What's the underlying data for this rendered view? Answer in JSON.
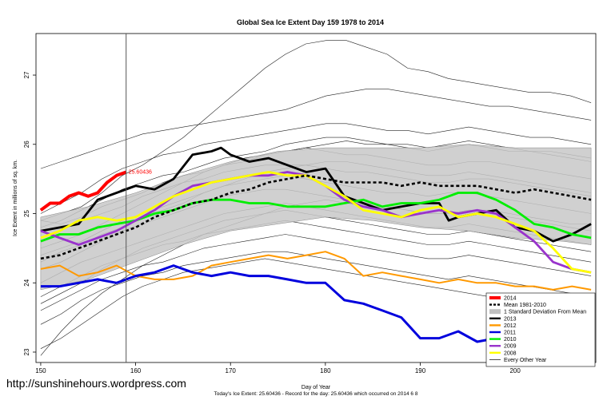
{
  "watermark": "http://sunshinehours.wordpress.com",
  "caption": "Today's Ice Extent: 25.60436  -  Record for the day: 25.60436 which occurred on 2014 6 8",
  "chart_data": {
    "type": "line",
    "title": "Global Sea Ice Extent Day 159 1978 to 2014",
    "xlabel": "Day of Year",
    "ylabel": "Ice Extent in millions of sq. km.",
    "xlim": [
      149.5,
      208.5
    ],
    "ylim": [
      22.85,
      27.6
    ],
    "xticks": [
      150,
      160,
      170,
      180,
      190,
      200
    ],
    "yticks": [
      23,
      24,
      25,
      26,
      27
    ],
    "marker_day": 159,
    "annotation": {
      "text": "25.60436",
      "x": 159,
      "y": 25.6
    },
    "legend": {
      "position": "bottom-right",
      "entries": [
        {
          "label": "2014",
          "color": "#ff0000",
          "style": "thick"
        },
        {
          "label": "Mean 1981-2010",
          "color": "#000000",
          "style": "dashed"
        },
        {
          "label": "1 Standard Deviation From Mean",
          "color": "#bfbfbf",
          "style": "fill"
        },
        {
          "label": "2013",
          "color": "#000000",
          "style": "solid"
        },
        {
          "label": "2012",
          "color": "#ff9900",
          "style": "solid"
        },
        {
          "label": "2011",
          "color": "#0000dd",
          "style": "solid"
        },
        {
          "label": "2010",
          "color": "#00ee00",
          "style": "solid"
        },
        {
          "label": "2009",
          "color": "#9933cc",
          "style": "solid"
        },
        {
          "label": "2008",
          "color": "#ffff00",
          "style": "solid"
        },
        {
          "label": "Every Other Year",
          "color": "#000000",
          "style": "thin"
        }
      ]
    },
    "band": {
      "x": [
        150,
        155,
        160,
        165,
        170,
        175,
        180,
        185,
        190,
        195,
        200,
        205,
        208
      ],
      "upper": [
        24.95,
        25.1,
        25.3,
        25.55,
        25.75,
        25.9,
        25.95,
        25.95,
        25.95,
        26.0,
        25.95,
        25.95,
        25.95
      ],
      "lower": [
        23.9,
        24.05,
        24.3,
        24.55,
        24.75,
        24.85,
        24.95,
        24.9,
        24.8,
        24.75,
        24.65,
        24.6,
        24.55
      ]
    },
    "mean": {
      "x": [
        150,
        152,
        154,
        156,
        158,
        160,
        162,
        164,
        166,
        168,
        170,
        172,
        174,
        176,
        178,
        180,
        182,
        184,
        186,
        188,
        190,
        192,
        194,
        196,
        198,
        200,
        202,
        204,
        206,
        208
      ],
      "y": [
        24.35,
        24.4,
        24.5,
        24.6,
        24.7,
        24.8,
        24.95,
        25.05,
        25.15,
        25.2,
        25.3,
        25.35,
        25.45,
        25.5,
        25.55,
        25.5,
        25.45,
        25.45,
        25.45,
        25.4,
        25.45,
        25.4,
        25.4,
        25.4,
        25.35,
        25.3,
        25.35,
        25.3,
        25.25,
        25.2
      ]
    },
    "series": [
      {
        "name": "2014",
        "color": "#ff0000",
        "width": 4,
        "x": [
          150,
          151,
          152,
          153,
          154,
          155,
          156,
          157,
          158,
          159
        ],
        "y": [
          25.05,
          25.15,
          25.15,
          25.25,
          25.3,
          25.25,
          25.3,
          25.45,
          25.55,
          25.6
        ]
      },
      {
        "name": "2013",
        "color": "#000000",
        "width": 2.8,
        "x": [
          150,
          152,
          154,
          156,
          158,
          160,
          162,
          164,
          166,
          168,
          169,
          170,
          172,
          174,
          176,
          178,
          180,
          182,
          184,
          186,
          188,
          190,
          192,
          193,
          194,
          196,
          198,
          200,
          202,
          204,
          206,
          208
        ],
        "y": [
          24.75,
          24.8,
          24.85,
          25.2,
          25.3,
          25.4,
          25.35,
          25.5,
          25.85,
          25.9,
          25.95,
          25.85,
          25.75,
          25.8,
          25.7,
          25.6,
          25.65,
          25.25,
          25.15,
          25.05,
          25.1,
          25.15,
          25.15,
          24.9,
          24.95,
          25.0,
          25.05,
          24.8,
          24.75,
          24.6,
          24.7,
          24.85
        ]
      },
      {
        "name": "2012",
        "color": "#ff9900",
        "width": 2,
        "x": [
          150,
          152,
          154,
          156,
          158,
          160,
          162,
          164,
          166,
          168,
          170,
          172,
          174,
          176,
          178,
          180,
          182,
          184,
          186,
          188,
          190,
          192,
          194,
          196,
          198,
          200,
          202,
          204,
          206,
          208
        ],
        "y": [
          24.2,
          24.25,
          24.1,
          24.15,
          24.25,
          24.1,
          24.05,
          24.05,
          24.1,
          24.25,
          24.3,
          24.35,
          24.4,
          24.35,
          24.4,
          24.45,
          24.35,
          24.1,
          24.15,
          24.1,
          24.05,
          24.0,
          24.05,
          24.0,
          24.0,
          23.95,
          23.95,
          23.9,
          23.95,
          23.9
        ]
      },
      {
        "name": "2011",
        "color": "#0000dd",
        "width": 3,
        "x": [
          150,
          152,
          154,
          156,
          158,
          160,
          162,
          164,
          166,
          168,
          170,
          172,
          174,
          176,
          178,
          180,
          182,
          184,
          186,
          188,
          190,
          192,
          194,
          196,
          198,
          200,
          202,
          204,
          206,
          208
        ],
        "y": [
          23.95,
          23.95,
          24.0,
          24.05,
          24.0,
          24.1,
          24.15,
          24.25,
          24.15,
          24.1,
          24.15,
          24.1,
          24.1,
          24.05,
          24.0,
          24.0,
          23.75,
          23.7,
          23.6,
          23.5,
          23.2,
          23.2,
          23.3,
          23.15,
          23.2,
          23.3,
          23.4,
          23.5,
          23.6,
          23.7
        ]
      },
      {
        "name": "2010",
        "color": "#00ee00",
        "width": 2.8,
        "x": [
          150,
          152,
          154,
          156,
          158,
          160,
          162,
          164,
          166,
          168,
          170,
          172,
          174,
          176,
          178,
          180,
          182,
          184,
          186,
          188,
          190,
          192,
          194,
          196,
          198,
          200,
          202,
          204,
          206,
          208
        ],
        "y": [
          24.6,
          24.7,
          24.7,
          24.8,
          24.85,
          24.9,
          25.0,
          25.05,
          25.15,
          25.2,
          25.2,
          25.15,
          25.15,
          25.1,
          25.1,
          25.1,
          25.15,
          25.2,
          25.1,
          25.15,
          25.15,
          25.2,
          25.3,
          25.3,
          25.2,
          25.05,
          24.85,
          24.8,
          24.7,
          24.65
        ]
      },
      {
        "name": "2009",
        "color": "#9933cc",
        "width": 2.8,
        "x": [
          150,
          152,
          154,
          156,
          158,
          160,
          162,
          164,
          166,
          168,
          170,
          172,
          174,
          176,
          178,
          180,
          182,
          184,
          186,
          188,
          190,
          192,
          194,
          196,
          198,
          200,
          202,
          204,
          206,
          208
        ],
        "y": [
          24.75,
          24.65,
          24.55,
          24.65,
          24.75,
          24.9,
          25.05,
          25.25,
          25.4,
          25.45,
          25.5,
          25.55,
          25.55,
          25.6,
          25.55,
          25.4,
          25.2,
          25.1,
          25.05,
          24.95,
          25.0,
          25.05,
          25.0,
          25.05,
          25.0,
          24.8,
          24.6,
          24.3,
          24.2,
          24.15
        ]
      },
      {
        "name": "2008",
        "color": "#ffff00",
        "width": 2.8,
        "x": [
          150,
          152,
          154,
          156,
          158,
          160,
          162,
          164,
          166,
          168,
          170,
          172,
          174,
          176,
          178,
          180,
          182,
          184,
          186,
          188,
          190,
          192,
          194,
          196,
          198,
          200,
          202,
          204,
          206,
          208
        ],
        "y": [
          24.65,
          24.75,
          24.9,
          24.95,
          24.9,
          24.95,
          25.1,
          25.25,
          25.35,
          25.45,
          25.5,
          25.55,
          25.6,
          25.55,
          25.55,
          25.4,
          25.25,
          25.05,
          25.0,
          24.95,
          25.05,
          25.1,
          24.95,
          25.0,
          24.95,
          24.85,
          24.75,
          24.5,
          24.2,
          24.15
        ]
      }
    ],
    "other_years": [
      [
        24.9,
        25.0,
        25.1,
        25.3,
        25.55,
        25.7,
        25.9,
        26.1,
        26.35,
        26.6,
        26.85,
        27.1,
        27.3,
        27.45,
        27.5,
        27.5,
        27.4,
        27.3,
        27.1,
        27.05,
        26.95,
        26.9,
        26.85,
        26.8,
        26.75,
        26.75,
        26.7,
        26.6
      ],
      [
        25.65,
        25.75,
        25.85,
        25.95,
        26.05,
        26.15,
        26.2,
        26.25,
        26.3,
        26.35,
        26.4,
        26.45,
        26.5,
        26.6,
        26.7,
        26.75,
        26.8,
        26.8,
        26.75,
        26.7,
        26.65,
        26.6,
        26.55,
        26.55,
        26.5,
        26.45,
        26.4,
        26.35
      ],
      [
        25.0,
        25.15,
        25.3,
        25.5,
        25.65,
        25.75,
        25.85,
        25.9,
        26.0,
        26.05,
        26.1,
        26.15,
        26.2,
        26.25,
        26.3,
        26.3,
        26.25,
        26.2,
        26.2,
        26.15,
        26.2,
        26.25,
        26.2,
        26.15,
        26.1,
        26.1,
        26.05,
        26.0
      ],
      [
        24.8,
        24.9,
        25.05,
        25.2,
        25.35,
        25.45,
        25.55,
        25.6,
        25.7,
        25.8,
        25.85,
        25.9,
        26.0,
        26.05,
        26.1,
        26.1,
        26.05,
        26.0,
        26.0,
        25.95,
        26.0,
        26.05,
        26.0,
        25.95,
        25.9,
        25.9,
        25.85,
        25.8
      ],
      [
        24.9,
        24.85,
        24.95,
        25.1,
        25.2,
        25.3,
        25.45,
        25.55,
        25.6,
        25.7,
        25.75,
        25.85,
        25.9,
        25.95,
        25.9,
        25.85,
        25.85,
        25.8,
        25.75,
        25.7,
        25.7,
        25.75,
        25.75,
        25.7,
        25.65,
        25.6,
        25.55,
        25.5
      ],
      [
        24.6,
        24.75,
        24.9,
        25.0,
        25.1,
        25.25,
        25.35,
        25.45,
        25.5,
        25.6,
        25.65,
        25.7,
        25.7,
        25.7,
        25.65,
        25.6,
        25.6,
        25.55,
        25.5,
        25.45,
        25.45,
        25.5,
        25.5,
        25.45,
        25.4,
        25.35,
        25.3,
        25.25
      ],
      [
        24.4,
        24.5,
        24.6,
        24.75,
        24.9,
        25.0,
        25.1,
        25.2,
        25.3,
        25.4,
        25.45,
        25.5,
        25.55,
        25.5,
        25.45,
        25.4,
        25.35,
        25.3,
        25.3,
        25.25,
        25.3,
        25.3,
        25.25,
        25.2,
        25.15,
        25.1,
        25.05,
        25.0
      ],
      [
        24.2,
        24.3,
        24.45,
        24.6,
        24.75,
        24.85,
        24.95,
        25.05,
        25.15,
        25.25,
        25.3,
        25.35,
        25.35,
        25.3,
        25.25,
        25.2,
        25.15,
        25.1,
        25.05,
        25.0,
        25.0,
        25.05,
        25.0,
        24.95,
        24.9,
        24.85,
        24.8,
        24.75
      ],
      [
        24.0,
        24.15,
        24.3,
        24.4,
        24.5,
        24.6,
        24.7,
        24.8,
        24.9,
        25.0,
        25.05,
        25.1,
        25.15,
        25.1,
        25.05,
        25.0,
        24.95,
        24.9,
        24.85,
        24.8,
        24.8,
        24.85,
        24.8,
        24.75,
        24.7,
        24.65,
        24.6,
        24.55
      ],
      [
        23.8,
        23.95,
        24.1,
        24.25,
        24.35,
        24.45,
        24.55,
        24.6,
        24.7,
        24.75,
        24.8,
        24.85,
        24.9,
        24.85,
        24.8,
        24.75,
        24.7,
        24.65,
        24.6,
        24.55,
        24.55,
        24.6,
        24.55,
        24.5,
        24.45,
        24.4,
        24.35,
        24.3
      ],
      [
        23.6,
        23.75,
        23.9,
        24.05,
        24.15,
        24.25,
        24.3,
        24.4,
        24.5,
        24.55,
        24.6,
        24.65,
        24.7,
        24.65,
        24.6,
        24.55,
        24.5,
        24.45,
        24.4,
        24.35,
        24.35,
        24.4,
        24.35,
        24.3,
        24.25,
        24.2,
        24.15,
        24.1
      ],
      [
        23.4,
        23.55,
        23.75,
        23.9,
        24.0,
        24.1,
        24.15,
        24.25,
        24.3,
        24.35,
        24.4,
        24.45,
        24.45,
        24.4,
        24.35,
        24.3,
        24.25,
        24.2,
        24.15,
        24.1,
        24.05,
        24.1,
        24.05,
        24.0,
        23.95,
        23.9,
        23.85,
        23.8
      ],
      [
        22.95,
        23.3,
        23.6,
        23.85,
        24.05,
        24.25,
        24.4,
        24.55,
        24.7,
        24.8,
        24.9,
        25.0,
        25.1,
        25.15,
        25.2,
        25.15,
        25.1,
        25.1,
        25.05,
        25.0,
        25.0,
        25.05,
        25.05,
        25.0,
        24.95,
        24.9,
        24.85,
        24.85
      ],
      [
        23.05,
        23.2,
        23.4,
        23.6,
        23.8,
        23.95,
        24.05,
        24.15,
        24.2,
        24.25,
        24.3,
        24.35,
        24.3,
        24.25,
        24.2,
        24.15,
        24.1,
        24.05,
        24.0,
        23.95,
        23.9,
        23.85,
        23.8,
        23.75,
        23.7,
        23.7,
        23.65,
        23.6
      ],
      [
        24.3,
        24.45,
        24.55,
        24.7,
        24.8,
        24.95,
        25.05,
        25.15,
        25.3,
        25.4,
        25.5,
        25.6,
        25.65,
        25.7,
        25.75,
        25.75,
        25.7,
        25.65,
        25.6,
        25.55,
        25.55,
        25.6,
        25.55,
        25.5,
        25.45,
        25.4,
        25.35,
        25.3
      ],
      [
        24.5,
        24.6,
        24.7,
        24.85,
        25.0,
        25.15,
        25.3,
        25.45,
        25.6,
        25.7,
        25.8,
        25.85,
        25.9,
        25.95,
        26.0,
        26.05,
        26.0,
        26.0,
        25.95,
        25.9,
        25.95,
        26.0,
        25.95,
        25.9,
        25.9,
        25.85,
        25.8,
        25.75
      ],
      [
        23.7,
        23.85,
        24.0,
        24.2,
        24.35,
        24.5,
        24.6,
        24.7,
        24.8,
        24.9,
        24.95,
        25.0,
        25.05,
        25.0,
        24.95,
        24.9,
        24.85,
        24.8,
        24.75,
        24.7,
        24.7,
        24.75,
        24.7,
        24.65,
        24.6,
        24.55,
        24.5,
        24.45
      ]
    ]
  }
}
